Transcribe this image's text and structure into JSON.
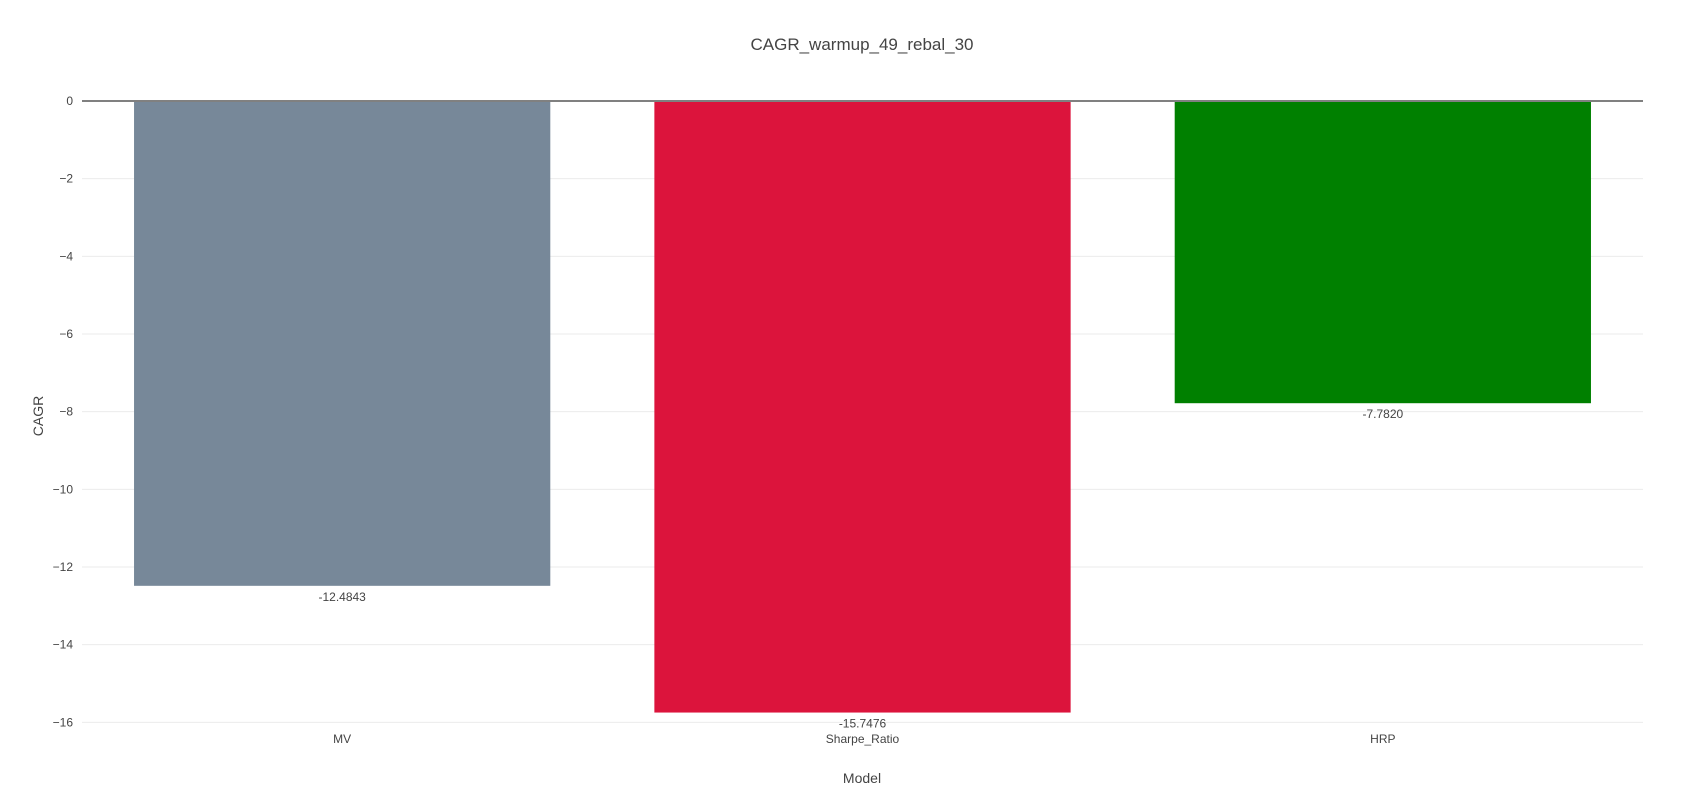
{
  "chart_data": {
    "type": "bar",
    "title": "CAGR_warmup_49_rebal_30",
    "xlabel": "Model",
    "ylabel": "CAGR",
    "categories": [
      "MV",
      "Sharpe_Ratio",
      "HRP"
    ],
    "values": [
      -12.4843,
      -15.7476,
      -7.782
    ],
    "data_labels": [
      "-12.4843",
      "-15.7476",
      "-7.7820"
    ],
    "colors": [
      "#778899",
      "#dc143c",
      "#008000"
    ],
    "ylim": [
      -16.3,
      0
    ],
    "yticks": [
      0,
      -2,
      -4,
      -6,
      -8,
      -10,
      -12,
      -14,
      -16
    ],
    "ytick_labels": [
      "0",
      "−2",
      "−4",
      "−6",
      "−8",
      "−10",
      "−12",
      "−14",
      "−16"
    ],
    "grid": true,
    "legend": "none"
  }
}
